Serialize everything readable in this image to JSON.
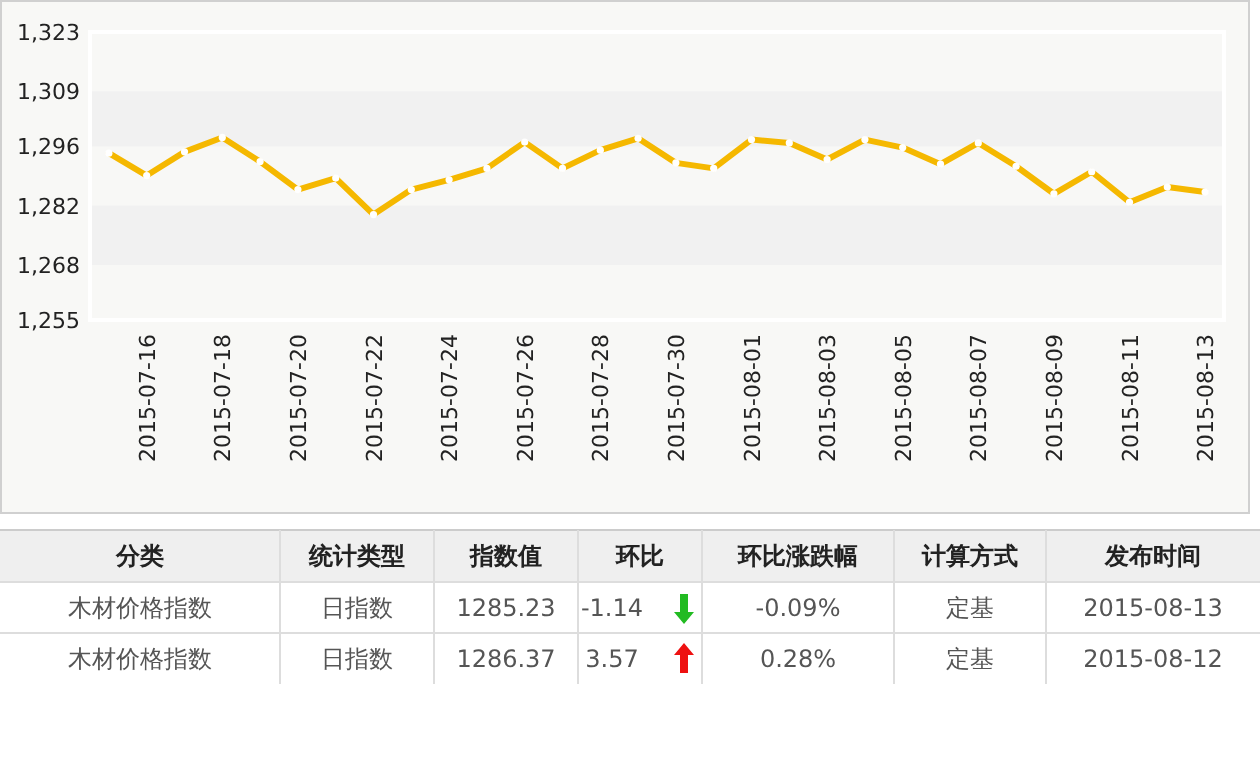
{
  "chart_data": [
    {
      "type": "line",
      "x": [
        "2015-07-15",
        "2015-07-16",
        "2015-07-17",
        "2015-07-18",
        "2015-07-19",
        "2015-07-20",
        "2015-07-21",
        "2015-07-22",
        "2015-07-23",
        "2015-07-24",
        "2015-07-25",
        "2015-07-26",
        "2015-07-27",
        "2015-07-28",
        "2015-07-29",
        "2015-07-30",
        "2015-07-31",
        "2015-08-01",
        "2015-08-02",
        "2015-08-03",
        "2015-08-04",
        "2015-08-05",
        "2015-08-06",
        "2015-08-07",
        "2015-08-08",
        "2015-08-09",
        "2015-08-10",
        "2015-08-11",
        "2015-08-12",
        "2015-08-13"
      ],
      "series": [
        {
          "color": "#f5b800",
          "values": [
            1294.4,
            1289.1,
            1294.7,
            1298.1,
            1292.4,
            1285.8,
            1288.5,
            1279.9,
            1285.8,
            1288.1,
            1290.8,
            1297.0,
            1290.8,
            1295.1,
            1297.9,
            1292.1,
            1290.8,
            1297.6,
            1296.8,
            1292.9,
            1297.6,
            1295.7,
            1291.8,
            1296.8,
            1291.3,
            1284.8,
            1290.0,
            1282.8,
            1286.4,
            1285.2
          ]
        }
      ],
      "xlim": [
        "2015-07-14T12:00",
        "2015-08-13T12:00"
      ],
      "xticks": [
        "2015-07-16",
        "2015-07-18",
        "2015-07-20",
        "2015-07-22",
        "2015-07-24",
        "2015-07-26",
        "2015-07-28",
        "2015-07-30",
        "2015-08-01",
        "2015-08-03",
        "2015-08-05",
        "2015-08-07",
        "2015-08-09",
        "2015-08-11",
        "2015-08-13"
      ],
      "ylim": [
        1255,
        1323
      ],
      "yticks": [
        {
          "value": 1255,
          "label": "1,255"
        },
        {
          "value": 1268,
          "label": "1,268"
        },
        {
          "value": 1282,
          "label": "1,282"
        },
        {
          "value": 1296,
          "label": "1,296"
        },
        {
          "value": 1309,
          "label": "1,309"
        },
        {
          "value": 1323,
          "label": "1,323"
        }
      ],
      "marker": "circle",
      "line_style": "solid"
    },
    {
      "type": "other",
      "categories": [
        "分类",
        "统计类型",
        "指数值",
        "环比",
        "环比涨跌幅",
        "计算方式",
        "发布时间"
      ],
      "cell_labels": [
        [
          "木材价格指数",
          "日指数",
          "1285.23",
          "-1.14",
          "-0.09%",
          "定基",
          "2015-08-13"
        ],
        [
          "木材价格指数",
          "日指数",
          "1286.37",
          "3.57",
          "0.28%",
          "定基",
          "2015-08-12"
        ]
      ]
    }
  ]
}
